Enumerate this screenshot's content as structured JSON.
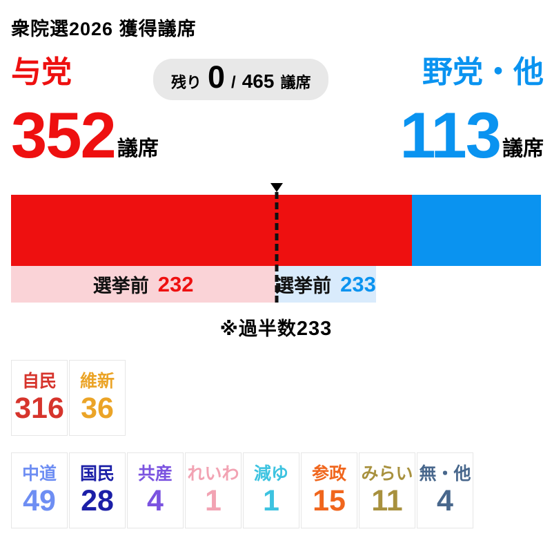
{
  "title": "衆院選2026 獲得議席",
  "ruling": {
    "label": "与党",
    "seats": 352,
    "unit": "議席",
    "pre_election": 232,
    "color": "#ee1010"
  },
  "opposition": {
    "label": "野党・他",
    "seats": 113,
    "unit": "議席",
    "pre_election": 233,
    "color": "#0a93f0"
  },
  "remaining": {
    "label": "残り",
    "value": "0",
    "of": "/",
    "total": "465",
    "unit": "議席"
  },
  "pre_election_label": "選挙前",
  "majority_note": {
    "prefix": "※過半数",
    "value": "233"
  },
  "party_rows": [
    {
      "items": [
        {
          "name": "自民",
          "seats": 316,
          "color": "#d6342c"
        },
        {
          "name": "維新",
          "seats": 36,
          "color": "#eba427"
        }
      ]
    },
    {
      "items": [
        {
          "name": "中道",
          "seats": 49,
          "color": "#6e8ef3"
        },
        {
          "name": "国民",
          "seats": 28,
          "color": "#1b1fa7"
        },
        {
          "name": "共産",
          "seats": 4,
          "color": "#7b53e0"
        },
        {
          "name": "れいわ",
          "seats": 1,
          "color": "#f2a3b3"
        },
        {
          "name": "減ゆ",
          "seats": 1,
          "color": "#3dc3e0"
        },
        {
          "name": "参政",
          "seats": 15,
          "color": "#f0661d"
        },
        {
          "name": "みらい",
          "seats": 11,
          "color": "#a8913e"
        },
        {
          "name": "無・他",
          "seats": 4,
          "color": "#48678c"
        }
      ]
    }
  ],
  "chart_data": {
    "type": "bar",
    "title": "衆院選2026 獲得議席",
    "orientation": "horizontal-stacked",
    "total_seats": 465,
    "remaining_seats": 0,
    "majority": 233,
    "majority_annotation": "※過半数233",
    "series": [
      {
        "name": "与党",
        "value": 352,
        "color": "#ee1010",
        "pre_election": 232,
        "pre_election_color": "#fad3d7"
      },
      {
        "name": "野党・他",
        "value": 113,
        "color": "#0a93f0",
        "pre_election": 233,
        "pre_election_color": "#d9ebfc"
      }
    ],
    "party_breakdown": [
      {
        "name": "自民",
        "seats": 316
      },
      {
        "name": "維新",
        "seats": 36
      },
      {
        "name": "中道",
        "seats": 49
      },
      {
        "name": "国民",
        "seats": 28
      },
      {
        "name": "共産",
        "seats": 4
      },
      {
        "name": "れいわ",
        "seats": 1
      },
      {
        "name": "減ゆ",
        "seats": 1
      },
      {
        "name": "参政",
        "seats": 15
      },
      {
        "name": "みらい",
        "seats": 11
      },
      {
        "name": "無・他",
        "seats": 4
      }
    ]
  }
}
